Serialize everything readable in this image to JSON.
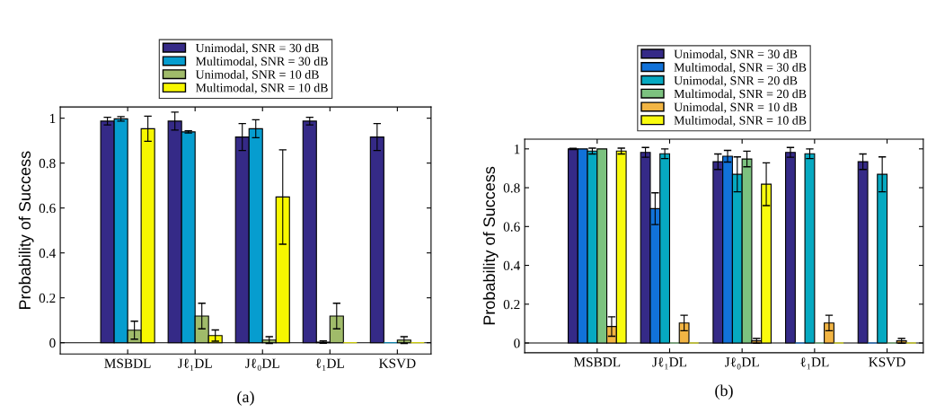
{
  "chart_data": [
    {
      "type": "bar",
      "ylabel": "Probability of Success",
      "annotations": [
        "(a)"
      ],
      "categories": [
        "MSBDL",
        "Jℓ₁DL",
        "Jℓ₀DL",
        "ℓ₁DL",
        "KSVD"
      ],
      "ylim": [
        -0.05,
        1.05
      ],
      "yticks": [
        0,
        0.2,
        0.4,
        0.6,
        0.8,
        1
      ],
      "legend": "top",
      "ref_lines": [
        {
          "axis": "y",
          "value": 0,
          "color": "#000000"
        }
      ],
      "series": [
        {
          "name": "Unimodal, SNR = 30 dB",
          "color": "#352a87",
          "values": [
            0.987,
            0.987,
            0.916,
            0.987,
            0.916
          ],
          "errors": [
            0.017,
            0.04,
            0.06,
            0.017,
            0.06
          ]
        },
        {
          "name": "Multimodal, SNR = 30 dB",
          "color": "#069dcf",
          "values": [
            0.997,
            0.939,
            0.953,
            0.003,
            0
          ],
          "errors": [
            0.01,
            0.005,
            0.04,
            0.005,
            null
          ]
        },
        {
          "name": "Unimodal, SNR = 10 dB",
          "color": "#a0bb6a",
          "values": [
            0.056,
            0.119,
            0.012,
            0.119,
            0.012
          ],
          "errors": [
            0.04,
            0.057,
            0.015,
            0.057,
            0.015
          ]
        },
        {
          "name": "Multimodal, SNR = 10 dB",
          "color": "#f7f700",
          "values": [
            0.953,
            0.032,
            0.649,
            0,
            0
          ],
          "errors": [
            0.056,
            0.025,
            0.21,
            null,
            null
          ]
        }
      ]
    },
    {
      "type": "bar",
      "ylabel": "Probability of Success",
      "annotations": [
        "(b)"
      ],
      "categories": [
        "MSBDL",
        "Jℓ₁DL",
        "Jℓ₀DL",
        "ℓ₁DL",
        "KSVD"
      ],
      "ylim": [
        -0.05,
        1.05
      ],
      "yticks": [
        0,
        0.2,
        0.4,
        0.6,
        0.8,
        1
      ],
      "legend": "top",
      "ref_lines": [
        {
          "axis": "y",
          "value": 0,
          "color": "#000000"
        }
      ],
      "series": [
        {
          "name": "Unimodal, SNR = 30 dB",
          "color": "#352a87",
          "values": [
            1.0,
            0.982,
            0.934,
            0.982,
            0.934
          ],
          "errors": [
            0.003,
            0.025,
            0.04,
            0.025,
            0.04
          ]
        },
        {
          "name": "Multimodal, SNR = 30 dB",
          "color": "#1172d9",
          "values": [
            1.0,
            0.692,
            0.962,
            0,
            0
          ],
          "errors": [
            null,
            0.082,
            0.03,
            null,
            null
          ]
        },
        {
          "name": "Unimodal, SNR = 20 dB",
          "color": "#06a9c1",
          "values": [
            0.989,
            0.975,
            0.869,
            0.975,
            0.869
          ],
          "errors": [
            0.015,
            0.025,
            0.09,
            0.025,
            0.09
          ]
        },
        {
          "name": "Multimodal, SNR = 20 dB",
          "color": "#7cc27f",
          "values": [
            1.0,
            0,
            0.948,
            0,
            0
          ],
          "errors": [
            null,
            null,
            0.04,
            null,
            null
          ]
        },
        {
          "name": "Unimodal, SNR = 10 dB",
          "color": "#f2b544",
          "values": [
            0.085,
            0.103,
            0.011,
            0.103,
            0.011
          ],
          "errors": [
            0.05,
            0.04,
            0.012,
            0.04,
            0.012
          ]
        },
        {
          "name": "Multimodal, SNR = 10 dB",
          "color": "#f9fb0e",
          "values": [
            0.989,
            0,
            0.818,
            0,
            0
          ],
          "errors": [
            0.015,
            null,
            0.11,
            null,
            null
          ]
        }
      ]
    }
  ]
}
